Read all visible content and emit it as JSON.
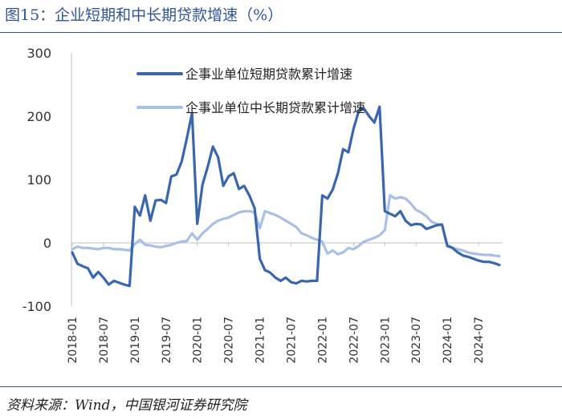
{
  "header": {
    "title": "图15：企业短期和中长期贷款增速（%）"
  },
  "footer": {
    "source": "资料来源：Wind，中国银河证券研究院"
  },
  "chart_data": {
    "type": "line",
    "title": "",
    "xlabel": "",
    "ylabel": "",
    "ylim": [
      -100,
      300
    ],
    "yticks": [
      "300",
      "200",
      "100",
      "0",
      "-100"
    ],
    "xticks": [
      "2018-01",
      "2018-07",
      "2019-01",
      "2019-07",
      "2020-01",
      "2020-07",
      "2021-01",
      "2021-07",
      "2022-01",
      "2022-07",
      "2023-01",
      "2023-07",
      "2024-01",
      "2024-07"
    ],
    "grid": false,
    "legend_position": "top-center",
    "colors": {
      "short_term": "#3a66b0",
      "long_term": "#a9c0e6"
    },
    "x_start": "2018-01",
    "x_end": "2024-11",
    "series": [
      {
        "name": "企事业单位短期贷款累计增速",
        "values": [
          -15,
          -33,
          -37,
          -40,
          -55,
          -46,
          -55,
          -66,
          -60,
          -63,
          -66,
          -68,
          57,
          43,
          75,
          35,
          67,
          68,
          63,
          105,
          108,
          128,
          165,
          205,
          30,
          92,
          120,
          152,
          135,
          90,
          105,
          110,
          85,
          90,
          75,
          55,
          -25,
          -43,
          -47,
          -55,
          -60,
          -55,
          -62,
          -64,
          -60,
          -61,
          -60,
          -60,
          75,
          70,
          84,
          110,
          148,
          143,
          180,
          208,
          212,
          200,
          190,
          215,
          50,
          46,
          42,
          50,
          35,
          28,
          30,
          29,
          22,
          25,
          28,
          29,
          -5,
          -8,
          -15,
          -20,
          -22,
          -25,
          -28,
          -30,
          -30,
          -32,
          -35
        ]
      },
      {
        "name": "企事业单位中长期贷款累计增速",
        "values": [
          -10,
          -6,
          -8,
          -8,
          -9,
          -10,
          -8,
          -8,
          -10,
          -10,
          -11,
          -12,
          -2,
          5,
          -3,
          -4,
          -6,
          -7,
          -5,
          -3,
          0,
          2,
          3,
          15,
          5,
          15,
          22,
          30,
          35,
          38,
          40,
          44,
          48,
          50,
          50,
          48,
          23,
          50,
          47,
          44,
          40,
          35,
          30,
          25,
          15,
          12,
          8,
          5,
          2,
          -17,
          -12,
          -18,
          -15,
          -8,
          -10,
          -5,
          2,
          5,
          8,
          12,
          20,
          75,
          70,
          72,
          70,
          62,
          52,
          48,
          42,
          33,
          30,
          28,
          -3,
          -8,
          -10,
          -12,
          -15,
          -17,
          -18,
          -19,
          -19,
          -20,
          -21
        ]
      }
    ]
  }
}
